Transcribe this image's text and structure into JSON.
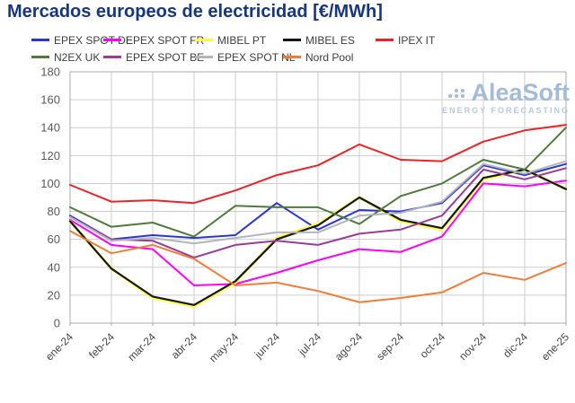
{
  "title": "Mercados europeos de electricidad [€/MWh]",
  "logo": {
    "name": "AleaSoft",
    "tagline": "ENERGY FORECASTING"
  },
  "colors": {
    "title_text": "#16367e",
    "grid_line": "#cdcdcd",
    "plot_border": "#a8a8a8",
    "axis_text": "#595959",
    "logo_text": "#a5bbd5"
  },
  "chart_data": {
    "type": "line",
    "title": "Mercados europeos de electricidad [€/MWh]",
    "x_labels": [
      "ene-24",
      "feb-24",
      "mar-24",
      "abr-24",
      "may-24",
      "jun-24",
      "jul-24",
      "ago-24",
      "sep-24",
      "oct-24",
      "nov-24",
      "dic-24",
      "ene-25"
    ],
    "xlabel": "",
    "ylabel": "",
    "ylim": [
      0,
      180
    ],
    "ytick_step": 20,
    "grid": true,
    "legend_position": "top",
    "series": [
      {
        "name": "EPEX SPOT DE",
        "color": "#2b35d5",
        "values": [
          77,
          60,
          63,
          61,
          63,
          86,
          67,
          81,
          80,
          86,
          113,
          106,
          114
        ]
      },
      {
        "name": "EPEX SPOT FR",
        "color": "#fb00fb",
        "values": [
          74,
          56,
          53,
          27,
          28,
          36,
          45,
          53,
          51,
          62,
          100,
          98,
          102
        ]
      },
      {
        "name": "MIBEL PT",
        "color": "#ffff3d",
        "values": [
          73,
          39,
          18,
          12,
          29,
          61,
          71,
          90,
          73,
          67,
          103,
          110,
          96
        ]
      },
      {
        "name": "MIBEL ES",
        "color": "#151515",
        "values": [
          73,
          39,
          19,
          13,
          30,
          60,
          70,
          90,
          74,
          68,
          104,
          110,
          96
        ]
      },
      {
        "name": "IPEX IT",
        "color": "#e92427",
        "values": [
          99,
          87,
          88,
          86,
          95,
          106,
          113,
          128,
          117,
          116,
          130,
          138,
          142
        ]
      },
      {
        "name": "N2EX UK",
        "color": "#507a3c",
        "values": [
          83,
          69,
          72,
          62,
          84,
          83,
          83,
          71,
          91,
          100,
          117,
          110,
          140
        ]
      },
      {
        "name": "EPEX SPOT BE",
        "color": "#993c98",
        "values": [
          76,
          60,
          59,
          47,
          56,
          59,
          56,
          64,
          67,
          77,
          110,
          103,
          111
        ]
      },
      {
        "name": "EPEX SPOT NL",
        "color": "#b4b4bc",
        "values": [
          76,
          59,
          61,
          57,
          61,
          65,
          65,
          77,
          79,
          87,
          114,
          107,
          116
        ]
      },
      {
        "name": "Nord Pool",
        "color": "#ec7e3a",
        "values": [
          66,
          50,
          56,
          46,
          27,
          29,
          23,
          15,
          18,
          22,
          36,
          31,
          43
        ]
      }
    ]
  }
}
